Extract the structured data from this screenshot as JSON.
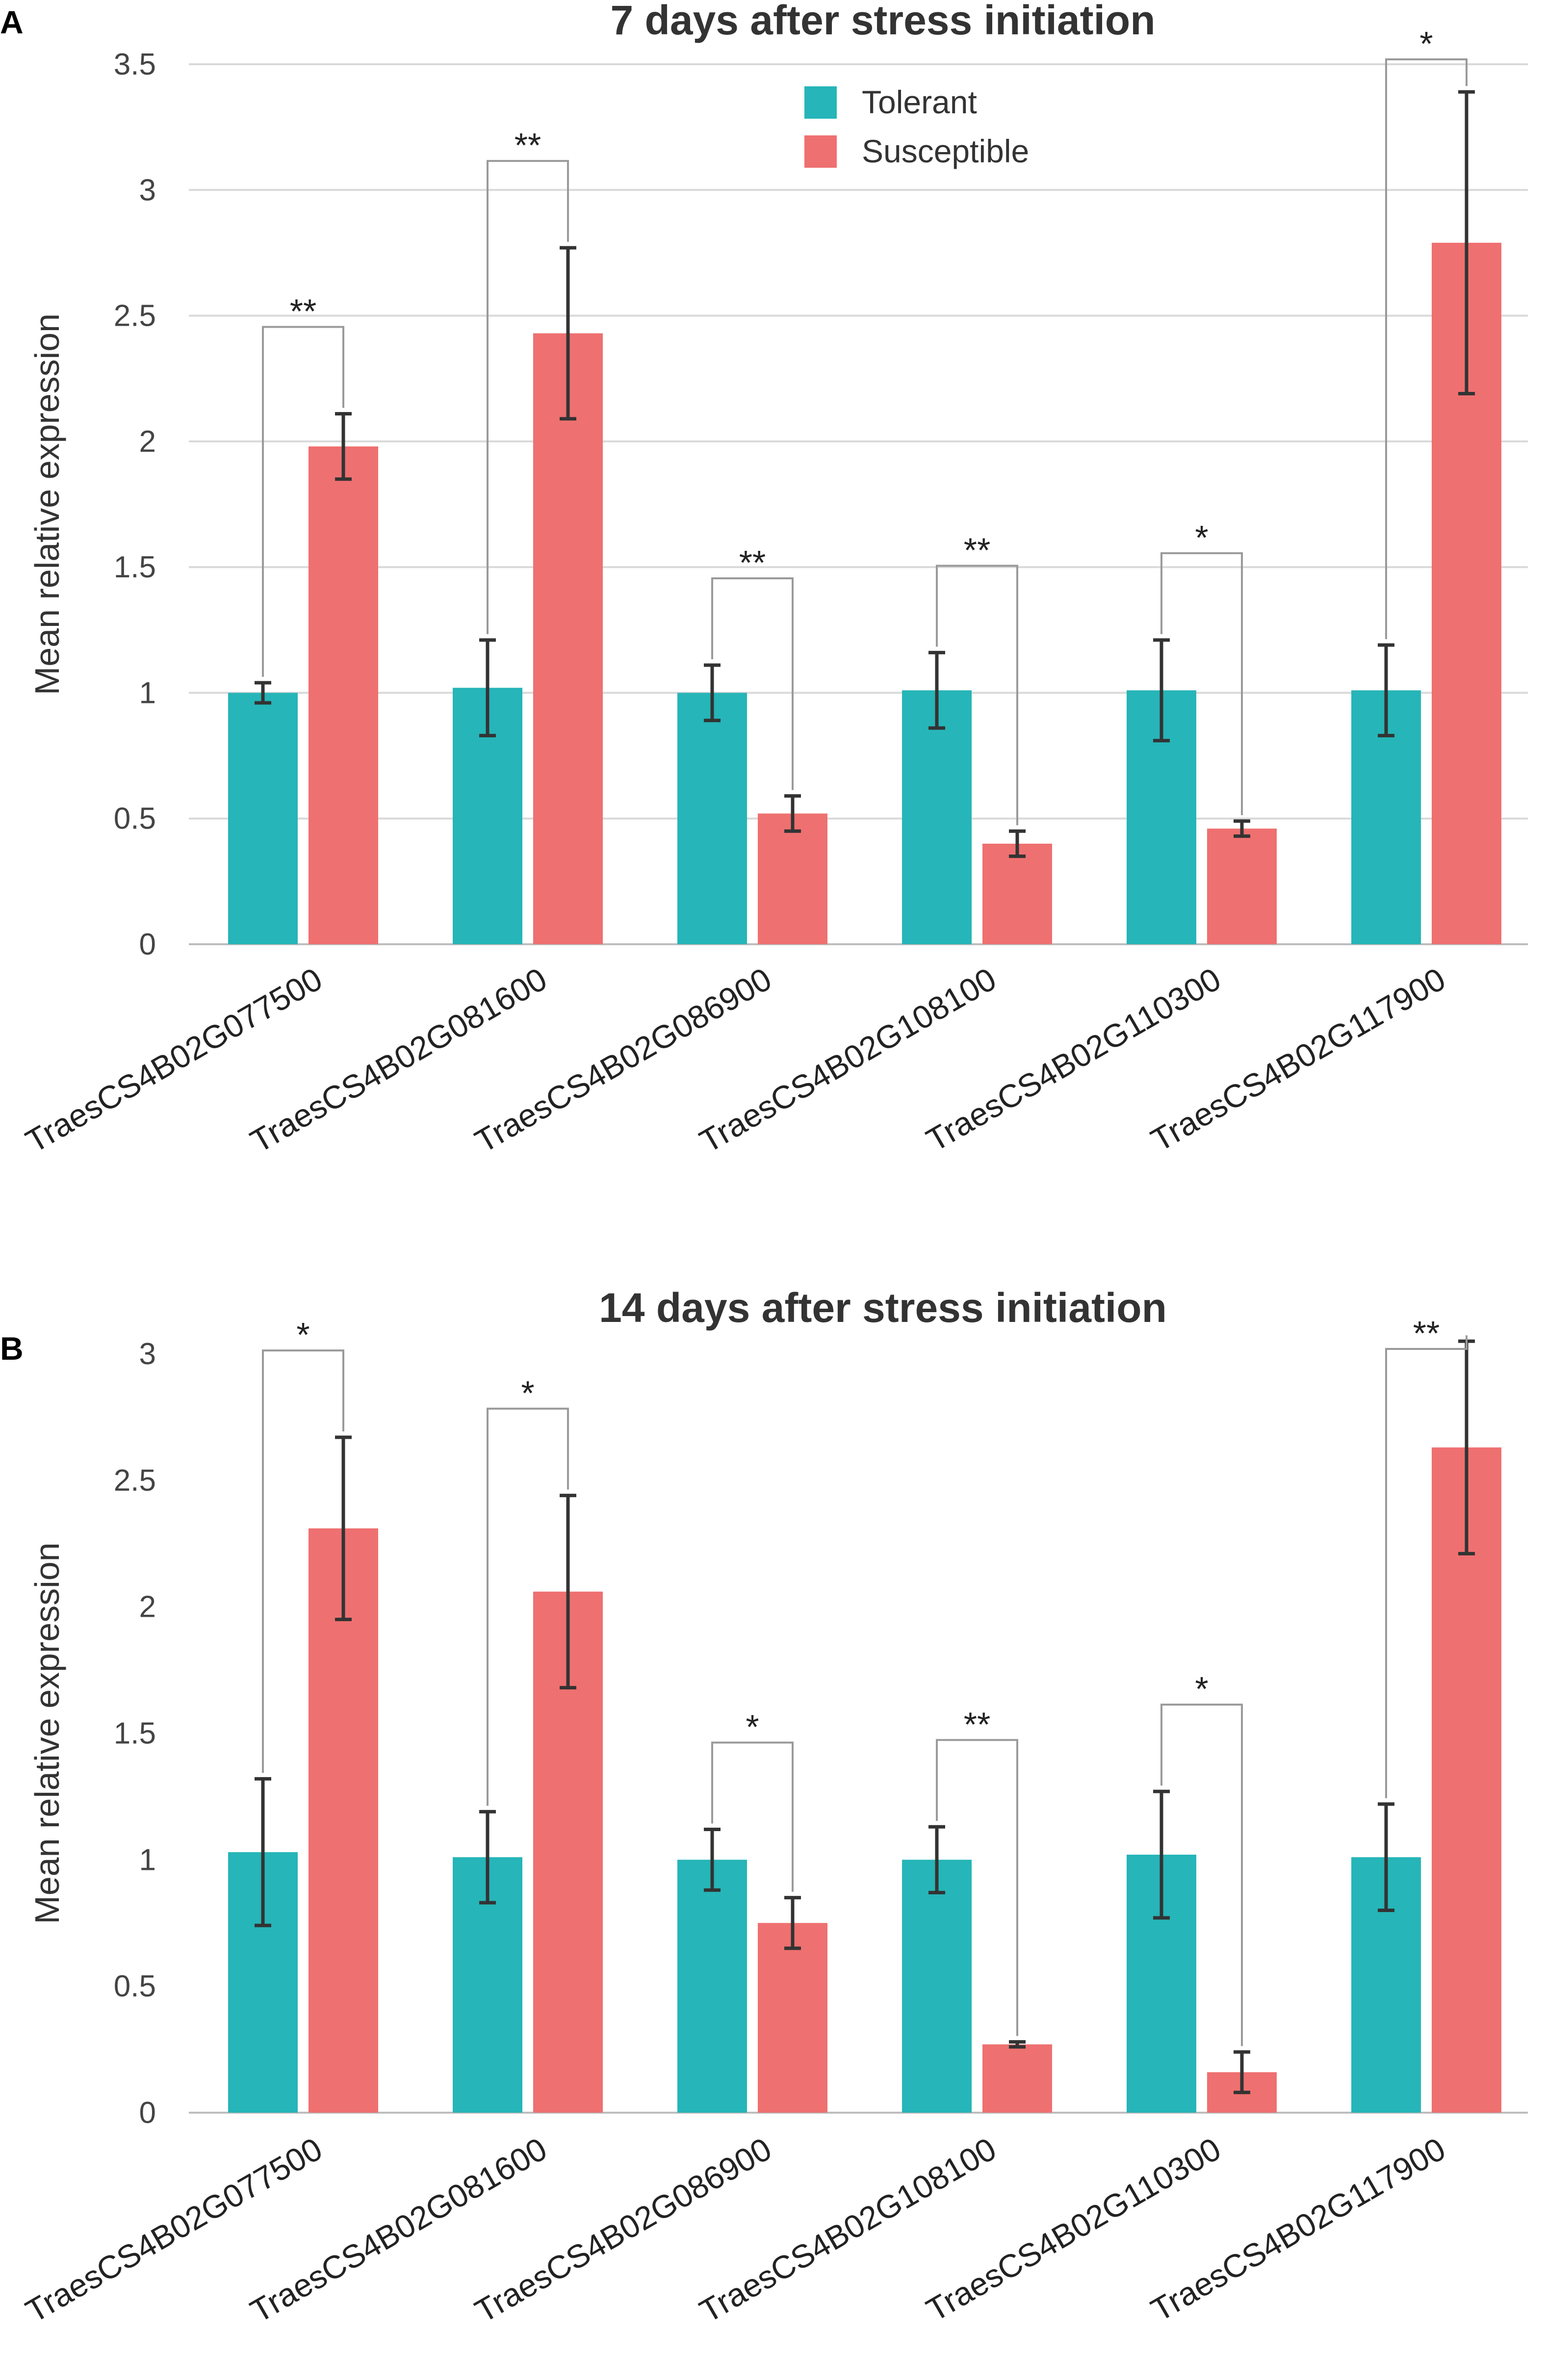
{
  "chart_data": [
    {
      "type": "bar",
      "panel": "A",
      "title": "7 days after stress initiation",
      "ylabel": "Mean relative expression",
      "xlabel": "",
      "ylim": [
        0,
        3.5
      ],
      "yticks": [
        0,
        0.5,
        1,
        1.5,
        2,
        2.5,
        3,
        3.5
      ],
      "ytick_labels": [
        "0",
        "0.5",
        "1",
        "1.5",
        "2",
        "2.5",
        "3",
        "3.5"
      ],
      "grid": true,
      "legend_position": "top-center",
      "categories": [
        "TraesCS4B02G077500",
        "TraesCS4B02G081600",
        "TraesCS4B02G086900",
        "TraesCS4B02G108100",
        "TraesCS4B02G110300",
        "TraesCS4B02G117900"
      ],
      "series": [
        {
          "name": "Tolerant",
          "color": "#26b5b8",
          "values": [
            1.0,
            1.02,
            1.0,
            1.01,
            1.01,
            1.01
          ],
          "error": [
            0.04,
            0.19,
            0.11,
            0.15,
            0.2,
            0.18
          ]
        },
        {
          "name": "Susceptible",
          "color": "#ef7070",
          "values": [
            1.98,
            2.43,
            0.52,
            0.4,
            0.46,
            2.79
          ],
          "error": [
            0.13,
            0.34,
            0.07,
            0.05,
            0.03,
            0.6
          ]
        }
      ],
      "significance": [
        "**",
        "**",
        "**",
        "**",
        "*",
        "*"
      ]
    },
    {
      "type": "bar",
      "panel": "B",
      "title": "14 days after stress initiation",
      "ylabel": "Mean relative expression",
      "xlabel": "",
      "ylim": [
        0,
        3
      ],
      "yticks": [
        0,
        0.5,
        1,
        1.5,
        2,
        2.5,
        3
      ],
      "ytick_labels": [
        "0",
        "0.5",
        "1",
        "1.5",
        "2",
        "2.5",
        "3"
      ],
      "grid": false,
      "categories": [
        "TraesCS4B02G077500",
        "TraesCS4B02G081600",
        "TraesCS4B02G086900",
        "TraesCS4B02G108100",
        "TraesCS4B02G110300",
        "TraesCS4B02G117900"
      ],
      "series": [
        {
          "name": "Tolerant",
          "color": "#26b5b8",
          "values": [
            1.03,
            1.01,
            1.0,
            1.0,
            1.02,
            1.01
          ],
          "error": [
            0.29,
            0.18,
            0.12,
            0.13,
            0.25,
            0.21
          ]
        },
        {
          "name": "Susceptible",
          "color": "#ef7070",
          "values": [
            2.31,
            2.06,
            0.75,
            0.27,
            0.16,
            2.63
          ],
          "error": [
            0.36,
            0.38,
            0.1,
            0.01,
            0.08,
            0.42
          ]
        }
      ],
      "significance": [
        "*",
        "*",
        "*",
        "**",
        "*",
        "**"
      ]
    }
  ]
}
